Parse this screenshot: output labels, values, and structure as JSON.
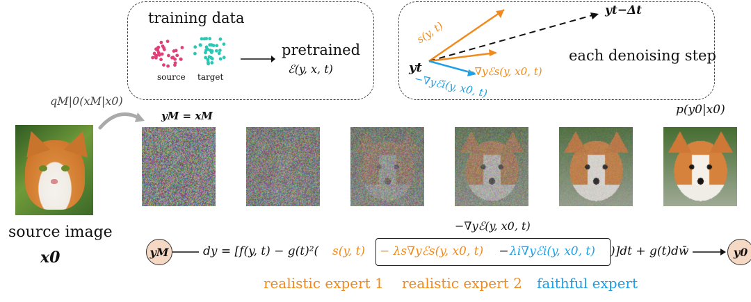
{
  "top_left_box": {
    "title": "training data",
    "source_label": "source",
    "target_label": "target",
    "pretrained_label": "pretrained",
    "energy_fn": "ℰ(y, x, t)",
    "source_color": "#e0407a",
    "target_color": "#2cc6b4"
  },
  "top_right_box": {
    "y_t": "yt",
    "y_next": "yt−Δt",
    "score": "s(y, t)",
    "grad_s": "−∇yℰs(y, x0, t)",
    "grad_i": "−∇yℰi(y, x0, t)",
    "caption": "each denoising step"
  },
  "labels": {
    "q_label": "qM|0(xM|x0)",
    "ym_eq": "yM = xM",
    "p_label": "p(y0|x0)",
    "source_image": "source image",
    "x0": "x0",
    "grad_total": "−∇yℰ(y, x0, t)"
  },
  "equation": {
    "start_node": "yM",
    "end_node": "y0",
    "part1": "dy = [f(y, t) − g(t)²(",
    "part_score": "s(y, t)",
    "part_grad_s": "− λs∇yℰs(y, x0, t)",
    "part_minus": " − ",
    "part_grad_i": "λi∇yℰi(y, x0, t)",
    "part_end": ")]dt + g(t)dw̄"
  },
  "experts": {
    "expert1": "realistic expert 1",
    "expert2": "realistic expert 2",
    "expert3": "faithful expert"
  },
  "colors": {
    "orange": "#f08a1c",
    "blue": "#1ea0e6"
  }
}
